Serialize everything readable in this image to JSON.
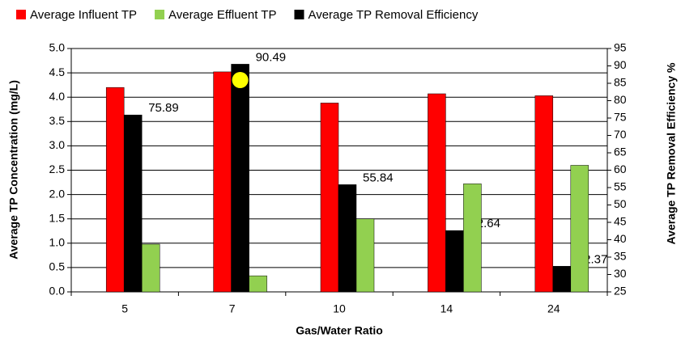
{
  "chart_data": {
    "type": "bar",
    "x_label": "Gas/Water Ratio",
    "y_label": "Average TP Concentration (mg/L)",
    "y2_label": "Average TP Removal Efficiency %",
    "categories": [
      "5",
      "7",
      "10",
      "14",
      "24"
    ],
    "series": [
      {
        "name": "Average Influent TP",
        "color": "#ff0000",
        "values": [
          4.2,
          4.52,
          3.88,
          4.07,
          4.03
        ]
      },
      {
        "name": "Average TP Removal Efficiency",
        "color": "#000000",
        "axis": "y2",
        "values": [
          75.89,
          90.49,
          55.84,
          42.64,
          32.37
        ]
      },
      {
        "name": "Average Effluent TP",
        "color": "#92d050",
        "values": [
          0.98,
          0.33,
          1.5,
          2.22,
          2.6
        ]
      }
    ],
    "legend_order": [
      "Average Influent TP",
      "Average Effluent TP",
      "Average TP Removal Efficiency"
    ],
    "ylim": [
      0,
      5
    ],
    "yticks": [
      {
        "value": 0,
        "label": "0.0"
      },
      {
        "value": 0.5,
        "label": "0.5"
      },
      {
        "value": 1,
        "label": "1.0"
      },
      {
        "value": 1.5,
        "label": "1.5"
      },
      {
        "value": 2,
        "label": "2.0"
      },
      {
        "value": 2.5,
        "label": "2.5"
      },
      {
        "value": 3,
        "label": "3.0"
      },
      {
        "value": 3.5,
        "label": "3.5"
      },
      {
        "value": 4,
        "label": "4.0"
      },
      {
        "value": 4.5,
        "label": "4.5"
      },
      {
        "value": 5,
        "label": "5.0"
      }
    ],
    "y2lim": [
      25,
      95
    ],
    "y2ticks": [
      25,
      30,
      35,
      40,
      45,
      50,
      55,
      60,
      65,
      70,
      75,
      80,
      85,
      90,
      95
    ],
    "grid": true,
    "legend": "top"
  }
}
